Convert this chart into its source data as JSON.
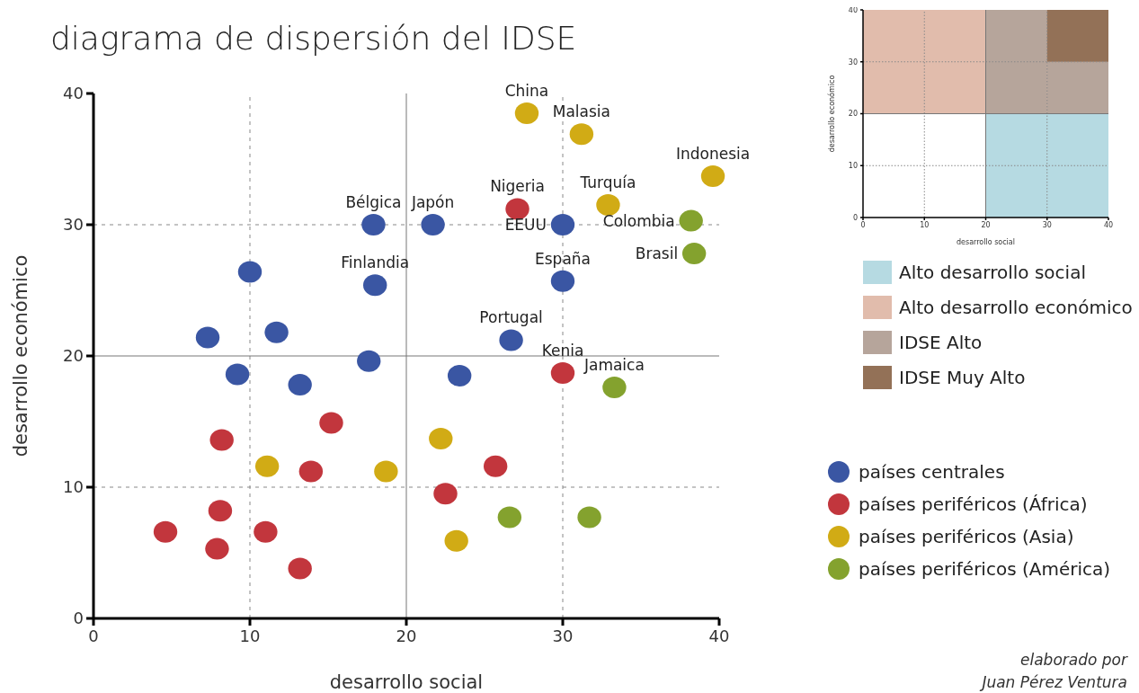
{
  "chart_data": [
    {
      "type": "scatter",
      "title": "diagrama de dispersión del IDSE",
      "xlabel": "desarrollo social",
      "ylabel": "desarrollo económico",
      "xlim": [
        0,
        40
      ],
      "ylim": [
        0,
        40
      ],
      "xticks": [
        0,
        10,
        20,
        30,
        40
      ],
      "yticks": [
        0,
        10,
        20,
        30,
        40
      ],
      "marker": "circle",
      "legend": "right",
      "ref_lines": [
        {
          "axis": "x",
          "value": 10,
          "line_style": "dashed"
        },
        {
          "axis": "x",
          "value": 20,
          "line_style": "solid"
        },
        {
          "axis": "x",
          "value": 30,
          "line_style": "dashed"
        },
        {
          "axis": "y",
          "value": 10,
          "line_style": "dashed"
        },
        {
          "axis": "y",
          "value": 20,
          "line_style": "solid"
        },
        {
          "axis": "y",
          "value": 30,
          "line_style": "dashed"
        }
      ],
      "series": [
        {
          "name": "países centrales",
          "color": "#3a56a3",
          "x": [
            17.9,
            21.7,
            30,
            18,
            30,
            26.7,
            10,
            7.3,
            11.7,
            9.2,
            13.2,
            17.6,
            23.4
          ],
          "values": [
            30,
            30,
            30,
            25.4,
            25.7,
            21.2,
            26.4,
            21.4,
            21.8,
            18.6,
            17.8,
            19.6,
            18.5
          ]
        },
        {
          "name": "países periféricos (África)",
          "color": "#c2363d",
          "x": [
            27.1,
            30,
            15.2,
            8.2,
            13.9,
            25.7,
            22.5,
            8.1,
            4.6,
            7.9,
            11,
            13.2
          ],
          "values": [
            31.2,
            18.7,
            14.9,
            13.6,
            11.2,
            11.6,
            9.5,
            8.2,
            6.6,
            5.3,
            6.6,
            3.8
          ]
        },
        {
          "name": "países periféricos (Asia)",
          "color": "#d1ab15",
          "x": [
            27.7,
            31.2,
            39.6,
            32.9,
            11.1,
            18.7,
            22.2,
            23.2
          ],
          "values": [
            38.5,
            36.9,
            33.7,
            31.5,
            11.6,
            11.2,
            13.7,
            5.9
          ]
        },
        {
          "name": "países periféricos (América)",
          "color": "#84a22e",
          "x": [
            38.2,
            38.4,
            33.3,
            26.6,
            31.7
          ],
          "values": [
            30.3,
            27.8,
            17.6,
            7.7,
            7.7
          ]
        }
      ],
      "annotations": [
        {
          "text": "China",
          "x": 27.7,
          "y": 38.5
        },
        {
          "text": "Malasia",
          "x": 31.2,
          "y": 36.9
        },
        {
          "text": "Indonesia",
          "x": 39.6,
          "y": 33.7
        },
        {
          "text": "Bélgica",
          "x": 17.9,
          "y": 30
        },
        {
          "text": "Japón",
          "x": 21.7,
          "y": 30
        },
        {
          "text": "Nigeria",
          "x": 27.1,
          "y": 31.2
        },
        {
          "text": "EEUU",
          "x": 30,
          "y": 30
        },
        {
          "text": "Turquía",
          "x": 32.9,
          "y": 31.5
        },
        {
          "text": "Colombia",
          "x": 38.2,
          "y": 30.3
        },
        {
          "text": "Brasil",
          "x": 38.4,
          "y": 27.8
        },
        {
          "text": "Finlandia",
          "x": 18,
          "y": 25.4
        },
        {
          "text": "España",
          "x": 30,
          "y": 25.7
        },
        {
          "text": "Portugal",
          "x": 26.7,
          "y": 21.2
        },
        {
          "text": "Kenia",
          "x": 30,
          "y": 18.7
        },
        {
          "text": "Jamaica",
          "x": 33.3,
          "y": 17.6
        },
        "elaborado por\nJuan Pérez Ventura"
      ]
    },
    {
      "type": "bar",
      "xlabel": "desarrollo social",
      "ylabel": "desarrollo económico",
      "xlim": [
        0,
        40
      ],
      "ylim": [
        0,
        40
      ],
      "xticks": [
        0,
        10,
        20,
        30,
        40
      ],
      "yticks": [
        0,
        10,
        20,
        30,
        40
      ],
      "legend": "bottom",
      "series": [
        {
          "name": "IDSE Alto",
          "color": "#b6a59b",
          "x": [
            25,
            35
          ],
          "base": [
            20,
            20
          ],
          "values": [
            20,
            10
          ]
        },
        {
          "name": "IDSE Muy Alto",
          "color": "#937157",
          "x": [
            35
          ],
          "base": [
            30
          ],
          "values": [
            10
          ]
        }
      ],
      "ref_lines": [
        {
          "axis": "x",
          "value": 10,
          "line_style": "dotted"
        },
        {
          "axis": "x",
          "value": 20,
          "line_style": "solid"
        },
        {
          "axis": "x",
          "value": 30,
          "line_style": "dotted"
        },
        {
          "axis": "y",
          "value": 10,
          "line_style": "dotted"
        },
        {
          "axis": "y",
          "value": 20,
          "line_style": "solid"
        },
        {
          "axis": "y",
          "value": 30,
          "line_style": "dotted"
        }
      ],
      "bands": [
        {
          "axis": "x",
          "from": 20,
          "to": 40,
          "label": "Alto desarrollo social",
          "color": "#b6dae2"
        },
        {
          "axis": "y",
          "from": 20,
          "to": 40,
          "label": "Alto desarrollo económico",
          "color": "#e1bcac"
        }
      ]
    }
  ]
}
